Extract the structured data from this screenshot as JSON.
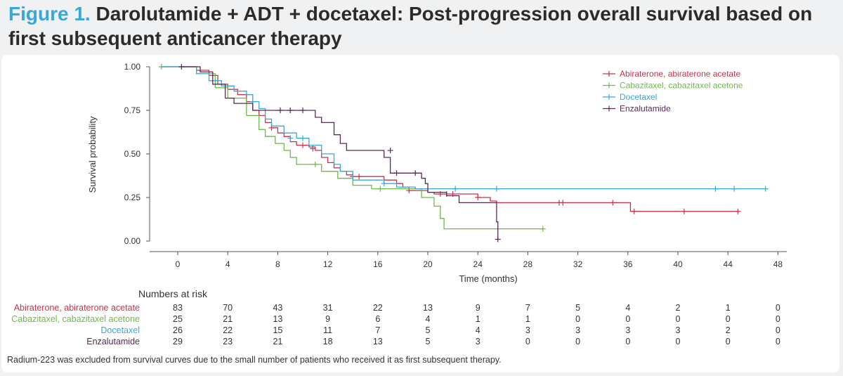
{
  "header": {
    "figure_label": "Figure 1.",
    "title_text": "Darolutamide + ADT + docetaxel: Post-progression overall survival based on first subsequent anticancer therapy"
  },
  "chart_data": {
    "type": "line",
    "title": "Darolutamide + ADT + docetaxel: Post-progression overall survival based on first subsequent anticancer therapy",
    "xlabel": "Time (months)",
    "ylabel": "Survival probability",
    "xlim": [
      -2,
      50
    ],
    "ylim": [
      0,
      1.05
    ],
    "xticks": [
      0,
      4,
      8,
      12,
      16,
      20,
      24,
      28,
      32,
      36,
      40,
      44,
      48
    ],
    "yticks": [
      0.0,
      0.25,
      0.5,
      0.75,
      1.0
    ],
    "ytick_labels": [
      "0.00",
      "0.25",
      "0.50",
      "0.75",
      "1.00"
    ],
    "legend_position": "top-right",
    "series": [
      {
        "name": "Abiraterone, abiraterone acetate",
        "color": "#c8334b",
        "steps": [
          [
            -1.3,
            1.0
          ],
          [
            1.5,
            0.98
          ],
          [
            2.5,
            0.95
          ],
          [
            3.2,
            0.9
          ],
          [
            4.0,
            0.87
          ],
          [
            4.8,
            0.84
          ],
          [
            5.5,
            0.8
          ],
          [
            6.0,
            0.75
          ],
          [
            6.5,
            0.72
          ],
          [
            7.0,
            0.68
          ],
          [
            7.5,
            0.65
          ],
          [
            8.0,
            0.62
          ],
          [
            8.5,
            0.6
          ],
          [
            9.0,
            0.57
          ],
          [
            9.5,
            0.55
          ],
          [
            10.5,
            0.54
          ],
          [
            11.0,
            0.52
          ],
          [
            11.5,
            0.48
          ],
          [
            12.0,
            0.45
          ],
          [
            12.5,
            0.42
          ],
          [
            13.0,
            0.4
          ],
          [
            13.5,
            0.38
          ],
          [
            14.0,
            0.37
          ],
          [
            16.5,
            0.35
          ],
          [
            17.5,
            0.33
          ],
          [
            18.0,
            0.31
          ],
          [
            18.5,
            0.29
          ],
          [
            20.0,
            0.28
          ],
          [
            20.5,
            0.27
          ],
          [
            24.0,
            0.25
          ],
          [
            25.0,
            0.23
          ],
          [
            25.5,
            0.22
          ],
          [
            36.2,
            0.17
          ],
          [
            44.8,
            0.17
          ]
        ],
        "censors": [
          [
            7.5,
            0.65
          ],
          [
            10.0,
            0.55
          ],
          [
            10.8,
            0.53
          ],
          [
            14.0,
            0.37
          ],
          [
            14.5,
            0.37
          ],
          [
            18.5,
            0.29
          ],
          [
            21.0,
            0.27
          ],
          [
            21.5,
            0.27
          ],
          [
            22.0,
            0.27
          ],
          [
            24.0,
            0.25
          ],
          [
            30.5,
            0.22
          ],
          [
            30.8,
            0.22
          ],
          [
            34.8,
            0.22
          ],
          [
            36.5,
            0.17
          ],
          [
            40.5,
            0.17
          ],
          [
            44.8,
            0.17
          ]
        ]
      },
      {
        "name": "Cabazitaxel, cabazitaxel acetone",
        "color": "#6fb84a",
        "steps": [
          [
            -1.3,
            1.0
          ],
          [
            1.5,
            0.96
          ],
          [
            3.0,
            0.88
          ],
          [
            4.0,
            0.82
          ],
          [
            5.5,
            0.72
          ],
          [
            6.5,
            0.64
          ],
          [
            7.0,
            0.6
          ],
          [
            7.8,
            0.56
          ],
          [
            8.5,
            0.52
          ],
          [
            9.0,
            0.48
          ],
          [
            9.5,
            0.44
          ],
          [
            11.0,
            0.44
          ],
          [
            11.5,
            0.4
          ],
          [
            12.8,
            0.36
          ],
          [
            14.0,
            0.32
          ],
          [
            15.5,
            0.3
          ],
          [
            19.5,
            0.25
          ],
          [
            20.5,
            0.2
          ],
          [
            21.0,
            0.13
          ],
          [
            21.3,
            0.07
          ],
          [
            29.2,
            0.07
          ]
        ],
        "censors": [
          [
            -1.3,
            1.0
          ],
          [
            11.0,
            0.44
          ],
          [
            16.2,
            0.3
          ],
          [
            29.2,
            0.07
          ]
        ]
      },
      {
        "name": "Docetaxel",
        "color": "#3aa8d6",
        "steps": [
          [
            -1.3,
            1.0
          ],
          [
            1.5,
            0.96
          ],
          [
            2.5,
            0.92
          ],
          [
            3.5,
            0.89
          ],
          [
            4.5,
            0.86
          ],
          [
            5.5,
            0.84
          ],
          [
            6.0,
            0.8
          ],
          [
            6.5,
            0.76
          ],
          [
            7.0,
            0.7
          ],
          [
            7.5,
            0.66
          ],
          [
            8.5,
            0.62
          ],
          [
            9.5,
            0.59
          ],
          [
            10.5,
            0.55
          ],
          [
            11.5,
            0.5
          ],
          [
            12.5,
            0.44
          ],
          [
            13.0,
            0.4
          ],
          [
            14.0,
            0.35
          ],
          [
            16.5,
            0.33
          ],
          [
            17.5,
            0.31
          ],
          [
            19.0,
            0.3
          ],
          [
            47.0,
            0.3
          ]
        ],
        "censors": [
          [
            6.0,
            0.8
          ],
          [
            9.0,
            0.59
          ],
          [
            10.0,
            0.59
          ],
          [
            16.5,
            0.33
          ],
          [
            22.2,
            0.3
          ],
          [
            25.5,
            0.3
          ],
          [
            43.0,
            0.3
          ],
          [
            44.5,
            0.3
          ],
          [
            47.0,
            0.3
          ]
        ]
      },
      {
        "name": "Enzalutamide",
        "color": "#5a2a52",
        "steps": [
          [
            0.3,
            1.0
          ],
          [
            1.8,
            0.97
          ],
          [
            2.8,
            0.9
          ],
          [
            3.8,
            0.82
          ],
          [
            4.5,
            0.79
          ],
          [
            6.0,
            0.75
          ],
          [
            10.0,
            0.75
          ],
          [
            11.0,
            0.71
          ],
          [
            11.5,
            0.68
          ],
          [
            12.5,
            0.61
          ],
          [
            13.0,
            0.56
          ],
          [
            13.5,
            0.52
          ],
          [
            16.5,
            0.48
          ],
          [
            17.0,
            0.39
          ],
          [
            19.5,
            0.36
          ],
          [
            19.8,
            0.33
          ],
          [
            20.0,
            0.28
          ],
          [
            21.5,
            0.26
          ],
          [
            22.5,
            0.22
          ],
          [
            25.5,
            0.11
          ],
          [
            25.6,
            0.01
          ]
        ],
        "censors": [
          [
            0.3,
            1.0
          ],
          [
            8.2,
            0.75
          ],
          [
            9.0,
            0.75
          ],
          [
            10.0,
            0.75
          ],
          [
            17.0,
            0.52
          ],
          [
            17.5,
            0.39
          ],
          [
            19.0,
            0.39
          ],
          [
            25.6,
            0.01
          ]
        ]
      }
    ]
  },
  "risk_table": {
    "header": "Numbers at risk",
    "times": [
      0,
      4,
      8,
      12,
      16,
      20,
      24,
      28,
      32,
      36,
      40,
      44,
      48
    ],
    "rows": [
      {
        "label": "Abiraterone, abiraterone acetate",
        "color": "#c8334b",
        "values": [
          "83",
          "70",
          "43",
          "31",
          "22",
          "13",
          "9",
          "7",
          "5",
          "4",
          "2",
          "1",
          "0"
        ]
      },
      {
        "label": "Cabazitaxel, cabazitaxel acetone",
        "color": "#6fb84a",
        "values": [
          "25",
          "21",
          "13",
          "9",
          "6",
          "4",
          "1",
          "1",
          "0",
          "0",
          "0",
          "0",
          "0"
        ]
      },
      {
        "label": "Docetaxel",
        "color": "#3aa8d6",
        "values": [
          "26",
          "22",
          "15",
          "11",
          "7",
          "5",
          "4",
          "3",
          "3",
          "3",
          "3",
          "2",
          "0"
        ]
      },
      {
        "label": "Enzalutamide",
        "color": "#5a2a52",
        "values": [
          "29",
          "23",
          "21",
          "18",
          "13",
          "5",
          "3",
          "0",
          "0",
          "0",
          "0",
          "0",
          "0"
        ]
      }
    ]
  },
  "footnote": "Radium-223 was excluded from survival curves due to the small number of patients who received it as first subsequent therapy."
}
